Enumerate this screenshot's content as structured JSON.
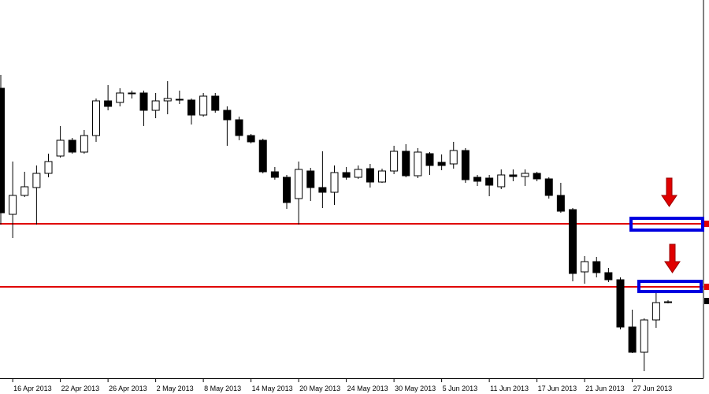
{
  "chart_data": {
    "type": "candlestick",
    "categories": [
      null,
      "16 Apr 2013",
      null,
      null,
      null,
      "22 Apr 2013",
      null,
      null,
      null,
      "26 Apr 2013",
      null,
      null,
      null,
      "2 May 2013",
      null,
      null,
      null,
      "8 May 2013",
      null,
      null,
      null,
      "14 May 2013",
      null,
      null,
      null,
      "20 May 2013",
      null,
      null,
      null,
      "24 May 2013",
      null,
      null,
      null,
      "30 May 2013",
      null,
      null,
      null,
      "5 Jun 2013",
      null,
      null,
      null,
      "11 Jun 2013",
      null,
      null,
      null,
      "17 Jun 2013",
      null,
      null,
      null,
      "21 Jun 2013",
      null,
      null,
      null,
      "27 Jun 2013",
      null,
      null,
      null
    ],
    "open": [
      388,
      228,
      252,
      262,
      280,
      302,
      322,
      307,
      328,
      372,
      370,
      382,
      382,
      360,
      372,
      374,
      373,
      354,
      378,
      360,
      348,
      328,
      322,
      282,
      275,
      248,
      283,
      262,
      256,
      281,
      275,
      286,
      269,
      283,
      308,
      277,
      305,
      294,
      292,
      309,
      275,
      274,
      263,
      278,
      276,
      280,
      273,
      252,
      234,
      155,
      168,
      154,
      145,
      85,
      53,
      94,
      117
    ],
    "high": [
      405,
      295,
      282,
      290,
      305,
      340,
      325,
      335,
      375,
      392,
      388,
      385,
      385,
      382,
      397,
      385,
      375,
      382,
      382,
      365,
      352,
      330,
      324,
      288,
      278,
      295,
      287,
      308,
      290,
      288,
      290,
      292,
      286,
      315,
      317,
      312,
      307,
      304,
      320,
      312,
      278,
      278,
      285,
      285,
      285,
      282,
      275,
      268,
      236,
      175,
      174,
      160,
      148,
      107,
      96,
      128,
      119
    ],
    "low": [
      215,
      198,
      250,
      215,
      275,
      300,
      305,
      305,
      320,
      360,
      365,
      375,
      340,
      350,
      355,
      368,
      342,
      352,
      357,
      315,
      322,
      318,
      280,
      272,
      235,
      215,
      245,
      236,
      240,
      272,
      273,
      262,
      268,
      279,
      275,
      274,
      278,
      284,
      286,
      268,
      264,
      251,
      260,
      270,
      264,
      270,
      248,
      230,
      143,
      140,
      148,
      142,
      82,
      52,
      29,
      84,
      115
    ],
    "close": [
      230,
      252,
      263,
      280,
      295,
      322,
      307,
      328,
      372,
      365,
      382,
      382,
      360,
      372,
      375,
      373,
      354,
      378,
      360,
      348,
      328,
      320,
      282,
      275,
      243,
      285,
      262,
      256,
      281,
      275,
      285,
      269,
      283,
      308,
      277,
      307,
      290,
      290,
      309,
      272,
      270,
      265,
      278,
      276,
      280,
      273,
      252,
      232,
      153,
      168,
      154,
      145,
      85,
      53,
      94,
      116,
      116
    ],
    "ylim": [
      20,
      500
    ],
    "levels": [
      216,
      136
    ]
  }
}
